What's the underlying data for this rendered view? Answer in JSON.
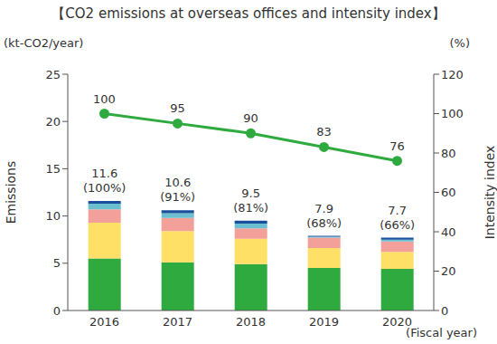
{
  "chart_data": {
    "type": "bar",
    "title": "【CO2 emissions at overseas offices and intensity index】",
    "categories": [
      "2016",
      "2017",
      "2018",
      "2019",
      "2020"
    ],
    "x_label": "(Fiscal year)",
    "y_label": "Emissions",
    "y_unit": "(kt-CO2/year)",
    "y2_label": "Intensity index",
    "y2_unit": "(%)",
    "stacked": true,
    "grid": false,
    "ylim": [
      0,
      25
    ],
    "yticks": [
      0,
      5,
      10,
      15,
      20,
      25
    ],
    "y2lim": [
      0,
      120
    ],
    "y2ticks": [
      0,
      20,
      40,
      60,
      80,
      100,
      120
    ],
    "series": [
      {
        "color": "#2eaa3f",
        "values": [
          5.5,
          5.1,
          4.9,
          4.5,
          4.4
        ]
      },
      {
        "color": "#ffe066",
        "values": [
          3.8,
          3.3,
          2.7,
          2.1,
          1.8
        ]
      },
      {
        "color": "#f4a09a",
        "values": [
          1.4,
          1.4,
          1.1,
          1.1,
          1.1
        ]
      },
      {
        "color": "#6bbfcf",
        "values": [
          0.6,
          0.5,
          0.5,
          0.1,
          0.2
        ]
      },
      {
        "color": "#1a4f9c",
        "values": [
          0.3,
          0.3,
          0.3,
          0.1,
          0.2
        ]
      },
      {
        "type": "line",
        "axis": "y2",
        "color": "#2eaa3f",
        "marker": "circle",
        "data_labels": true,
        "values": [
          100,
          95,
          90,
          83,
          76
        ]
      }
    ],
    "totals": [
      11.6,
      10.6,
      9.5,
      7.9,
      7.7
    ],
    "total_shares": {
      "values": [
        100,
        91,
        81,
        68,
        66
      ],
      "value_labels": [
        "(100%)",
        "(91%)",
        "(81%)",
        "(68%)",
        "(66%)"
      ]
    }
  }
}
